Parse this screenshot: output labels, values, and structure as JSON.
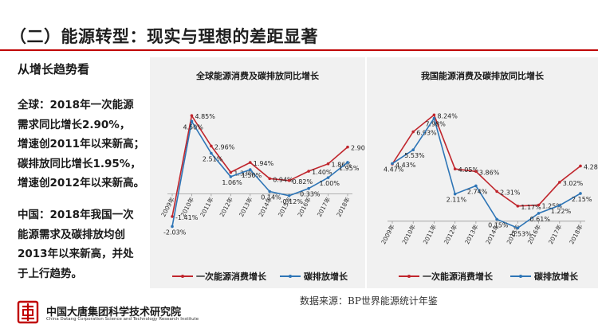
{
  "slide": {
    "title": "（二）能源转型：现实与理想的差距显著",
    "subtitle": "从增长趋势看",
    "paragraph_global": [
      "全球：2018年一次能源",
      "需求同比增长2.90%，",
      "增速创2011年以来新高；",
      "碳排放同比增长1.95%，",
      "增速创2012年以来新高。"
    ],
    "paragraph_china": [
      "中国：2018年我国一次",
      "能源需求及碳排放均创",
      "2013年以来新高，并处",
      "于上行趋势。"
    ],
    "source": "数据来源：BP世界能源统计年鉴",
    "org_name_cn": "中国大唐集团科学技术研究院",
    "org_name_en": "China Datang Corporation Science and Technology Research Institute",
    "colors": {
      "accent": "#c00000",
      "series_energy": "#c0262d",
      "series_carbon": "#2e75b6",
      "panel": "#f1f1f1"
    }
  },
  "chart_data": [
    {
      "type": "line",
      "title": "全球能源消费及碳排放同比增长",
      "categories": [
        "2009年",
        "2010年",
        "2011年",
        "2012年",
        "2013年",
        "2014年",
        "2015年",
        "2016年",
        "2017年",
        "2018年"
      ],
      "series": [
        {
          "name": "一次能源消费增长",
          "values": [
            -1.41,
            4.85,
            2.96,
            1.33,
            1.94,
            0.94,
            0.82,
            1.4,
            1.86,
            2.9
          ],
          "labels": [
            "-1.41%",
            "4.85%",
            "2.96%",
            "1.33%",
            "1.94%",
            "0.94%",
            "0.82%",
            "1.40%",
            "1.86%",
            "2.90%"
          ]
        },
        {
          "name": "碳排放增长",
          "values": [
            -2.03,
            4.5,
            2.51,
            1.06,
            1.5,
            0.14,
            -0.12,
            0.33,
            1.0,
            1.95
          ],
          "labels": [
            "-2.03%",
            "4.50%",
            "2.51%",
            "1.06%",
            "1.50%",
            "0.14%",
            "-0.12%",
            "0.33%",
            "1.00%",
            "1.95%"
          ]
        }
      ],
      "ylim": [
        -2.5,
        5.5
      ],
      "legend_position": "bottom",
      "grid": false
    },
    {
      "type": "line",
      "title": "我国能源消费及碳排放同比增长",
      "categories": [
        "2009年",
        "2010年",
        "2011年",
        "2012年",
        "2013年",
        "2014年",
        "2015年",
        "2016年",
        "2017年",
        "2018年"
      ],
      "series": [
        {
          "name": "一次能源消费增长",
          "values": [
            4.43,
            6.93,
            8.24,
            4.05,
            3.86,
            2.31,
            1.17,
            1.25,
            3.02,
            4.28
          ],
          "labels": [
            "4.43%",
            "6.93%",
            "8.24%",
            "4.05%",
            "3.86%",
            "2.31%",
            "1.17%",
            "1.25%",
            "3.02%",
            "4.28%"
          ]
        },
        {
          "name": "碳排放增长",
          "values": [
            4.47,
            5.53,
            7.98,
            2.11,
            2.74,
            0.15,
            -0.53,
            0.61,
            1.22,
            2.15
          ],
          "labels": [
            "4.47%",
            "5.53%",
            "7.98%",
            "2.11%",
            "2.74%",
            "0.15%",
            "-0.53%",
            "0.61%",
            "1.22%",
            "2.15%"
          ]
        }
      ],
      "ylim": [
        -1.0,
        9.0
      ],
      "legend_position": "bottom",
      "grid": false
    }
  ]
}
